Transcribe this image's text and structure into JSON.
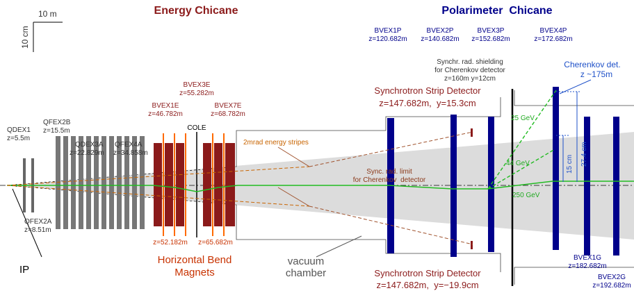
{
  "titles": {
    "energy": "Energy Chicane",
    "polarimeter": "Polarimeter  Chicane"
  },
  "scale": {
    "x": "10 m",
    "y": "10 cm"
  },
  "magnets": {
    "bvex1p": {
      "name": "BVEX1P",
      "z": "z=120.682m"
    },
    "bvex2p": {
      "name": "BVEX2P",
      "z": "z=140.682m"
    },
    "bvex3p": {
      "name": "BVEX3P",
      "z": "z=152.682m"
    },
    "bvex4p": {
      "name": "BVEX4P",
      "z": "z=172.682m"
    },
    "bvex3e": {
      "name": "BVEX3E",
      "z": "z=55.282m"
    },
    "bvex1e": {
      "name": "BVEX1E",
      "z": "z=46.782m"
    },
    "bvex7e": {
      "name": "BVEX7E",
      "z": "z=68.782m"
    },
    "qfex2b": {
      "name": "QFEX2B",
      "z": "z=15.5m"
    },
    "qdex1": {
      "name": "QDEX1",
      "z": "z=5.5m"
    },
    "qdex3a": {
      "name": "QDEX3A",
      "z": "z=22.829m"
    },
    "qfex4a": {
      "name": "QFEX4A",
      "z": "z=34.858m"
    },
    "qfex2a": {
      "name": "QFEX2A",
      "z": "z=8.51m"
    },
    "bvex1g": {
      "name": "BVEX1G",
      "z": "z=182.682m"
    },
    "bvex2g": {
      "name": "BVEX2G",
      "z": "z=192.682m"
    }
  },
  "cole": "COLE",
  "bend_z": [
    "z=52.182m",
    "z=65.682m"
  ],
  "bend_label": [
    "Horizontal Bend",
    "Magnets"
  ],
  "shielding": [
    "Synchr. rad. shielding",
    "for Cherenkov detector",
    "z=160m y=12cm"
  ],
  "cherenkov": [
    "Cherenkov det.",
    "z ~175m"
  ],
  "strip_top": [
    "Synchrotron Strip Detector",
    "z=147.682m,  y=15.3cm"
  ],
  "strip_bottom": [
    "Synchrotron Strip Detector",
    "z=147.682m,  y=−19.9cm"
  ],
  "stripes": "2mrad energy stripes",
  "energies": [
    "25 GeV",
    "44 GeV",
    "250 GeV"
  ],
  "distances": [
    "15 cm",
    "27.4 cm"
  ],
  "sync_limit": [
    "Sync. rad. limit",
    "for Cherenkov  detector"
  ],
  "ip": "IP",
  "chamber": [
    "vacuum",
    "chamber"
  ]
}
